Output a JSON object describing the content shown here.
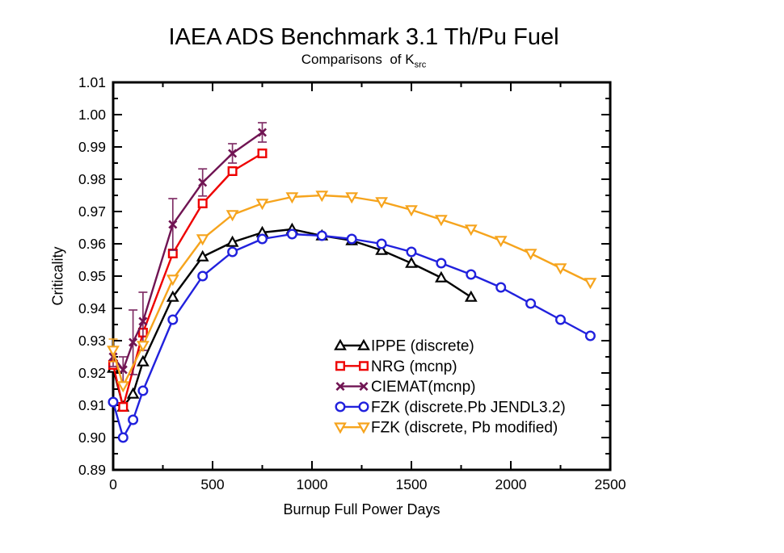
{
  "chart_data": {
    "type": "line",
    "title": "IAEA ADS Benchmark 3.1 Th/Pu Fuel",
    "subtitle_main": "Comparisons  of K",
    "subtitle_subscript": "src",
    "xlabel": "Burnup Full Power Days",
    "ylabel": "Criticality",
    "xlim": [
      0,
      2500
    ],
    "ylim": [
      0.89,
      1.01
    ],
    "x_major_step": 500,
    "x_minor_step": 250,
    "y_major_step": 0.01,
    "y_minor_step": 0.005,
    "grid": false,
    "legend_position": "inside-lower-right",
    "frame_color": "#000000",
    "series": [
      {
        "name": "IPPE (discrete)",
        "color": "#000000",
        "marker": "triangle-up",
        "x": [
          0,
          50,
          100,
          150,
          300,
          450,
          600,
          750,
          900,
          1050,
          1200,
          1350,
          1500,
          1650,
          1800
        ],
        "y": [
          0.9215,
          0.9095,
          0.9135,
          0.9235,
          0.9435,
          0.956,
          0.9605,
          0.9635,
          0.9645,
          0.9625,
          0.961,
          0.958,
          0.954,
          0.9495,
          0.9435
        ]
      },
      {
        "name": "NRG (mcnp)",
        "color": "#EE0000",
        "marker": "square",
        "x": [
          0,
          50,
          150,
          300,
          450,
          600,
          750
        ],
        "y": [
          0.9225,
          0.9095,
          0.9325,
          0.957,
          0.9725,
          0.9825,
          0.988
        ]
      },
      {
        "name": "CIEMAT(mcnp)",
        "color": "#701453",
        "marker": "x",
        "x": [
          0,
          50,
          100,
          150,
          300,
          450,
          600,
          750
        ],
        "y": [
          0.925,
          0.921,
          0.9295,
          0.936,
          0.966,
          0.979,
          0.988,
          0.9945
        ],
        "yerr": [
          0.003,
          0.004,
          0.01,
          0.009,
          0.008,
          0.0042,
          0.003,
          0.003
        ]
      },
      {
        "name": "FZK (discrete.Pb JENDL3.2)",
        "color": "#2121DD",
        "marker": "circle",
        "x": [
          0,
          50,
          100,
          150,
          300,
          450,
          600,
          750,
          900,
          1050,
          1200,
          1350,
          1500,
          1650,
          1800,
          1950,
          2100,
          2250,
          2400
        ],
        "y": [
          0.911,
          0.9,
          0.9055,
          0.9145,
          0.9365,
          0.95,
          0.9575,
          0.9615,
          0.963,
          0.9625,
          0.9615,
          0.96,
          0.9575,
          0.954,
          0.9505,
          0.9465,
          0.9415,
          0.9365,
          0.9315
        ]
      },
      {
        "name": "FZK (discrete, Pb modified)",
        "color": "#F6A41D",
        "marker": "triangle-down",
        "x": [
          0,
          50,
          150,
          300,
          450,
          600,
          750,
          900,
          1050,
          1200,
          1350,
          1500,
          1650,
          1800,
          1950,
          2100,
          2250,
          2400
        ],
        "y": [
          0.927,
          0.916,
          0.9285,
          0.949,
          0.9615,
          0.969,
          0.9725,
          0.9745,
          0.975,
          0.9745,
          0.973,
          0.9705,
          0.9675,
          0.9645,
          0.961,
          0.957,
          0.9525,
          0.948
        ],
        "yerr": [
          0.0035,
          null,
          null,
          null,
          null,
          null,
          null,
          null,
          null,
          null,
          null,
          null,
          null,
          null,
          null,
          null,
          null,
          null
        ]
      }
    ]
  }
}
